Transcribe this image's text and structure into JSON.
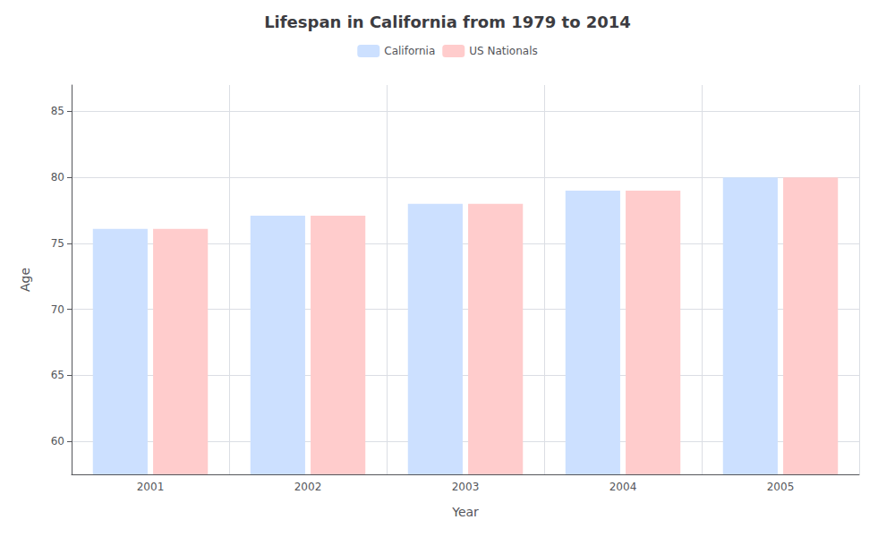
{
  "chart_data": {
    "type": "bar",
    "title": "Lifespan in California from 1979 to 2014",
    "x_label": "Year",
    "y_label": "Age",
    "categories": [
      "2001",
      "2002",
      "2003",
      "2004",
      "2005"
    ],
    "series": [
      {
        "name": "California",
        "color": "#cce0ff",
        "values": [
          76.1,
          77.1,
          78.0,
          79.0,
          80.0
        ]
      },
      {
        "name": "US Nationals",
        "color": "#ffcccc",
        "values": [
          76.1,
          77.1,
          78.0,
          79.0,
          80.0
        ]
      }
    ],
    "ylim": [
      57.5,
      87
    ],
    "yticks": [
      60,
      65,
      70,
      75,
      80,
      85
    ],
    "grid": true,
    "legend": "top"
  }
}
